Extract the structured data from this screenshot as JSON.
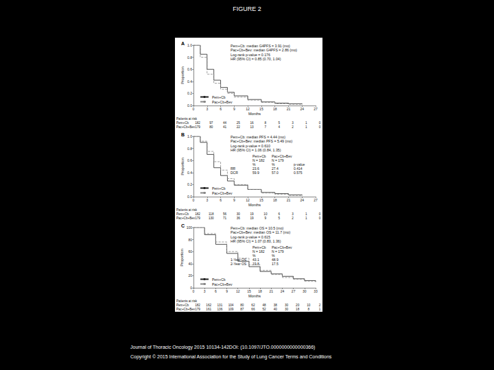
{
  "header": {
    "title": "FIGURE 2"
  },
  "footer": [
    "Journal of Thoracic Oncology 2015 10134-142DOI: (10.1097/JTO.0000000000000366)",
    "Copyright © 2015 International Association for the Study of Lung Cancer Terms and Conditions"
  ],
  "chart_data": [
    {
      "type": "line",
      "title": "A",
      "x_label": "Months",
      "y_label": "Proportion",
      "x": [
        0,
        1.5,
        3,
        4.5,
        6,
        7.5,
        9,
        12,
        15,
        18,
        21,
        24
      ],
      "series": [
        {
          "name": "Pem+Cb",
          "color": "#222222",
          "line_style": "solid",
          "values": [
            1.0,
            0.85,
            0.6,
            0.42,
            0.3,
            0.22,
            0.16,
            0.1,
            0.06,
            0.04,
            0.03,
            0.02
          ]
        },
        {
          "name": "Pac+Cb+Bev",
          "color": "#888888",
          "line_style": "dashed",
          "values": [
            1.0,
            0.8,
            0.52,
            0.37,
            0.27,
            0.2,
            0.14,
            0.09,
            0.05,
            0.03,
            0.02,
            0.01
          ]
        }
      ],
      "xlim": [
        0,
        27
      ],
      "xticks": [
        0,
        3,
        6,
        9,
        12,
        15,
        18,
        21,
        24,
        27
      ],
      "ylim": [
        0,
        1
      ],
      "yticks": [
        {
          "value": 0,
          "label": "0.0"
        },
        {
          "value": 0.2,
          "label": "0.2"
        },
        {
          "value": 0.4,
          "label": "0.4"
        },
        {
          "value": 0.6,
          "label": "0.6"
        },
        {
          "value": 0.8,
          "label": "0.8"
        },
        {
          "value": 1,
          "label": "1.0"
        }
      ],
      "grid": false,
      "legend": "bottom-left",
      "annotations": [
        "Pem+Cb: median G4PFS = 3.91 (mo)",
        "Pac+Cb+Bev: median G4PFS = 2.86 (mo)",
        "Log-rank p-value = 0.176",
        "HR (95% CI) = 0.85 (0.70, 1.04)"
      ],
      "at_risk": {
        "title": "Patients at risk",
        "rows": [
          {
            "name": "Pem+Cb",
            "values": [
              182,
              97,
              44,
              25,
              16,
              8,
              5,
              3,
              1,
              0
            ]
          },
          {
            "name": "Pac+Cb+Bev",
            "values": [
              179,
              80,
              41,
              22,
              13,
              7,
              4,
              2,
              1,
              0
            ]
          }
        ]
      }
    },
    {
      "type": "line",
      "title": "B",
      "x_label": "Months",
      "y_label": "Proportion",
      "x": [
        0,
        1.5,
        3,
        4.5,
        6,
        7.5,
        9,
        12,
        15,
        18,
        21,
        24
      ],
      "series": [
        {
          "name": "Pem+Cb",
          "color": "#222222",
          "line_style": "solid",
          "values": [
            1.0,
            0.9,
            0.7,
            0.48,
            0.35,
            0.26,
            0.19,
            0.12,
            0.07,
            0.05,
            0.03,
            0.02
          ]
        },
        {
          "name": "Pac+Cb+Bev",
          "color": "#888888",
          "line_style": "dashed",
          "values": [
            1.0,
            0.92,
            0.75,
            0.58,
            0.44,
            0.3,
            0.2,
            0.12,
            0.06,
            0.04,
            0.02,
            0.01
          ]
        }
      ],
      "xlim": [
        0,
        27
      ],
      "xticks": [
        0,
        3,
        6,
        9,
        12,
        15,
        18,
        21,
        24,
        27
      ],
      "ylim": [
        0,
        1
      ],
      "yticks": [
        {
          "value": 0,
          "label": "0.0"
        },
        {
          "value": 0.2,
          "label": "0.2"
        },
        {
          "value": 0.4,
          "label": "0.4"
        },
        {
          "value": 0.6,
          "label": "0.6"
        },
        {
          "value": 0.8,
          "label": "0.8"
        },
        {
          "value": 1,
          "label": "1.0"
        }
      ],
      "grid": false,
      "legend": "bottom-left",
      "annotations": [
        "Pem+Cb: median PFS = 4.44 (mo)",
        "Pac+Cb+Bev: median PFS = 5.49 (mo)",
        "Log-rank p-value = 0.610",
        "HR (95% CI) = 1.06 (0.84, 1.35)"
      ],
      "table": [
        [
          null,
          "Pem+Cb",
          "Pac+Cb+Bev",
          null
        ],
        [
          null,
          "N = 182",
          "N = 179",
          null
        ],
        [
          null,
          "%",
          "%",
          "p-value"
        ],
        [
          "RR",
          "23.6",
          "27.4",
          "0.414"
        ],
        [
          "DCR",
          "59.9",
          "57.0",
          "0.575"
        ]
      ],
      "at_risk": {
        "title": "Patients at risk",
        "rows": [
          {
            "name": "Pem+Cb",
            "values": [
              182,
              118,
              56,
              30,
              19,
              10,
              6,
              3,
              1,
              0
            ]
          },
          {
            "name": "Pac+Cb+Bev",
            "values": [
              179,
              130,
              71,
              36,
              19,
              9,
              5,
              2,
              1,
              0
            ]
          }
        ]
      }
    },
    {
      "type": "line",
      "title": "C",
      "x_label": "Months",
      "y_label": "Proportion",
      "x": [
        0,
        3,
        6,
        9,
        12,
        15,
        18,
        21,
        24,
        27,
        30,
        33
      ],
      "series": [
        {
          "name": "Pem+Cb",
          "color": "#222222",
          "line_style": "solid",
          "values": [
            100,
            88,
            72,
            57,
            44,
            35,
            27,
            23,
            19,
            15,
            12,
            10
          ]
        },
        {
          "name": "Pac+Cb+Bev",
          "color": "#888888",
          "line_style": "dashed",
          "values": [
            100,
            90,
            76,
            60,
            49,
            38,
            29,
            22,
            17,
            14,
            11,
            9
          ]
        }
      ],
      "xlim": [
        0,
        33
      ],
      "xticks": [
        0,
        3,
        6,
        9,
        12,
        15,
        18,
        21,
        24,
        27,
        30,
        33
      ],
      "ylim": [
        0,
        100
      ],
      "yticks": [
        0,
        20,
        40,
        60,
        80,
        100
      ],
      "grid": false,
      "legend": "bottom-left",
      "annotations": [
        "Pem+Cb: median OS = 10.5 (mo)",
        "Pac+Cb+Bev: median OS = 11.7 (mo)",
        "Log-rank p-value = 0.615",
        "HR (95% CI) = 1.07 (0.83, 1.36)"
      ],
      "table": [
        [
          null,
          "Pem+Cb",
          "Pac+Cb+Bev"
        ],
        [
          null,
          "N = 182",
          "N = 179"
        ],
        [
          null,
          "%",
          "%"
        ],
        [
          "1-Year OS",
          "43.1",
          "48.9"
        ],
        [
          "2-Year OS",
          "19.8",
          "17.5"
        ]
      ],
      "at_risk": {
        "title": "Patients at risk",
        "rows": [
          {
            "name": "Pem+Cb",
            "values": [
              182,
              162,
              131,
              104,
              80,
              62,
              48,
              38,
              30,
              20,
              10,
              2
            ]
          },
          {
            "name": "Pac+Cb+Bev",
            "values": [
              179,
              161,
              136,
              109,
              87,
              66,
              52,
              40,
              30,
              18,
              8,
              1
            ]
          }
        ]
      }
    }
  ]
}
